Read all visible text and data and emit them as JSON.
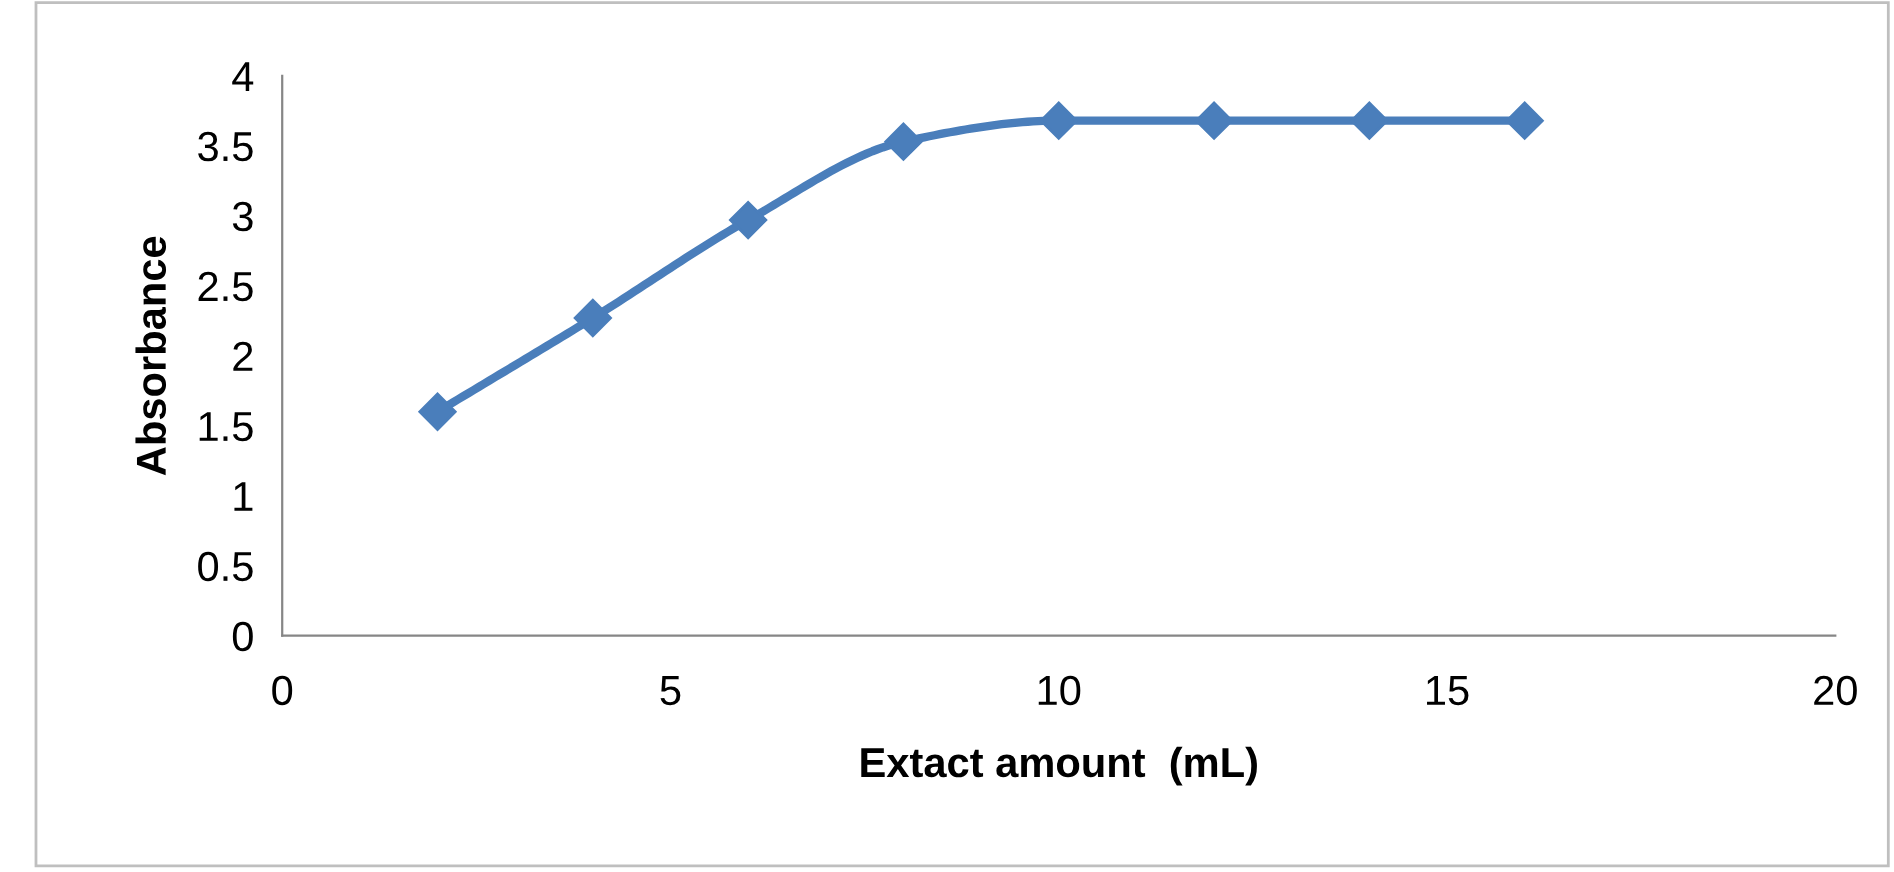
{
  "chart_data": {
    "type": "line",
    "xlabel": "Extact amount  (mL)",
    "ylabel": "Absorbance",
    "x": [
      2,
      4,
      6,
      8,
      10,
      12,
      14,
      16
    ],
    "series": [
      {
        "color": "#4a7ebb",
        "values": [
          1.6,
          2.27,
          2.97,
          3.53,
          3.68,
          3.68,
          3.68,
          3.68
        ]
      }
    ],
    "xlim": [
      0,
      20
    ],
    "xticks": [
      0,
      5,
      10,
      15,
      20
    ],
    "ylim": [
      0,
      4
    ],
    "yticks": [
      0,
      {
        "value": 0.5,
        "label": "0.5"
      },
      1,
      {
        "value": 1.5,
        "label": "1.5"
      },
      2,
      {
        "value": 2.5,
        "label": "2.5"
      },
      3,
      {
        "value": 3.5,
        "label": "3.5"
      },
      4
    ],
    "grid": false,
    "marker": "diamond",
    "line_style": "solid"
  }
}
